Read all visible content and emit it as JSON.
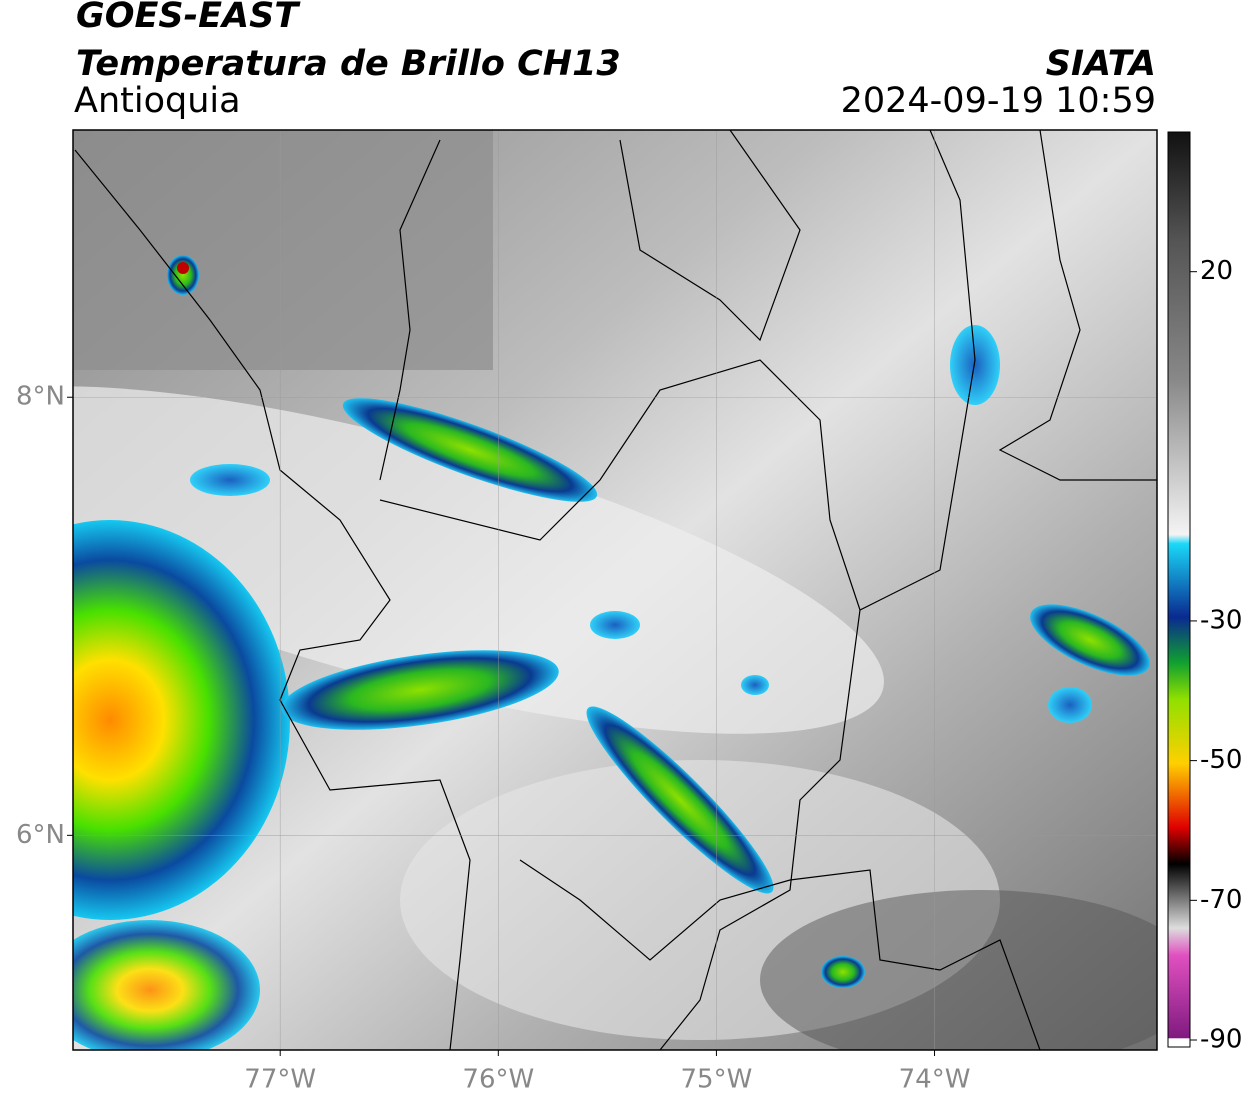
{
  "header": {
    "title": "GOES-EAST",
    "subtitle": "Temperatura de Brillo CH13",
    "region": "Antioquia",
    "source": "SIATA",
    "datetime": "2024-09-19 10:59"
  },
  "map": {
    "xlim": [
      -77.95,
      -72.98
    ],
    "ylim": [
      5.02,
      9.22
    ],
    "xticks": [
      {
        "value": -77,
        "label": "77°W"
      },
      {
        "value": -76,
        "label": "76°W"
      },
      {
        "value": -75,
        "label": "75°W"
      },
      {
        "value": -74,
        "label": "74°W"
      }
    ],
    "yticks": [
      {
        "value": 8,
        "label": "8°N"
      },
      {
        "value": 6,
        "label": "6°N"
      }
    ],
    "grid": true
  },
  "colorbar": {
    "lim": [
      -91,
      40
    ],
    "ticks": [
      20,
      -30,
      -50,
      -70,
      -90
    ]
  }
}
